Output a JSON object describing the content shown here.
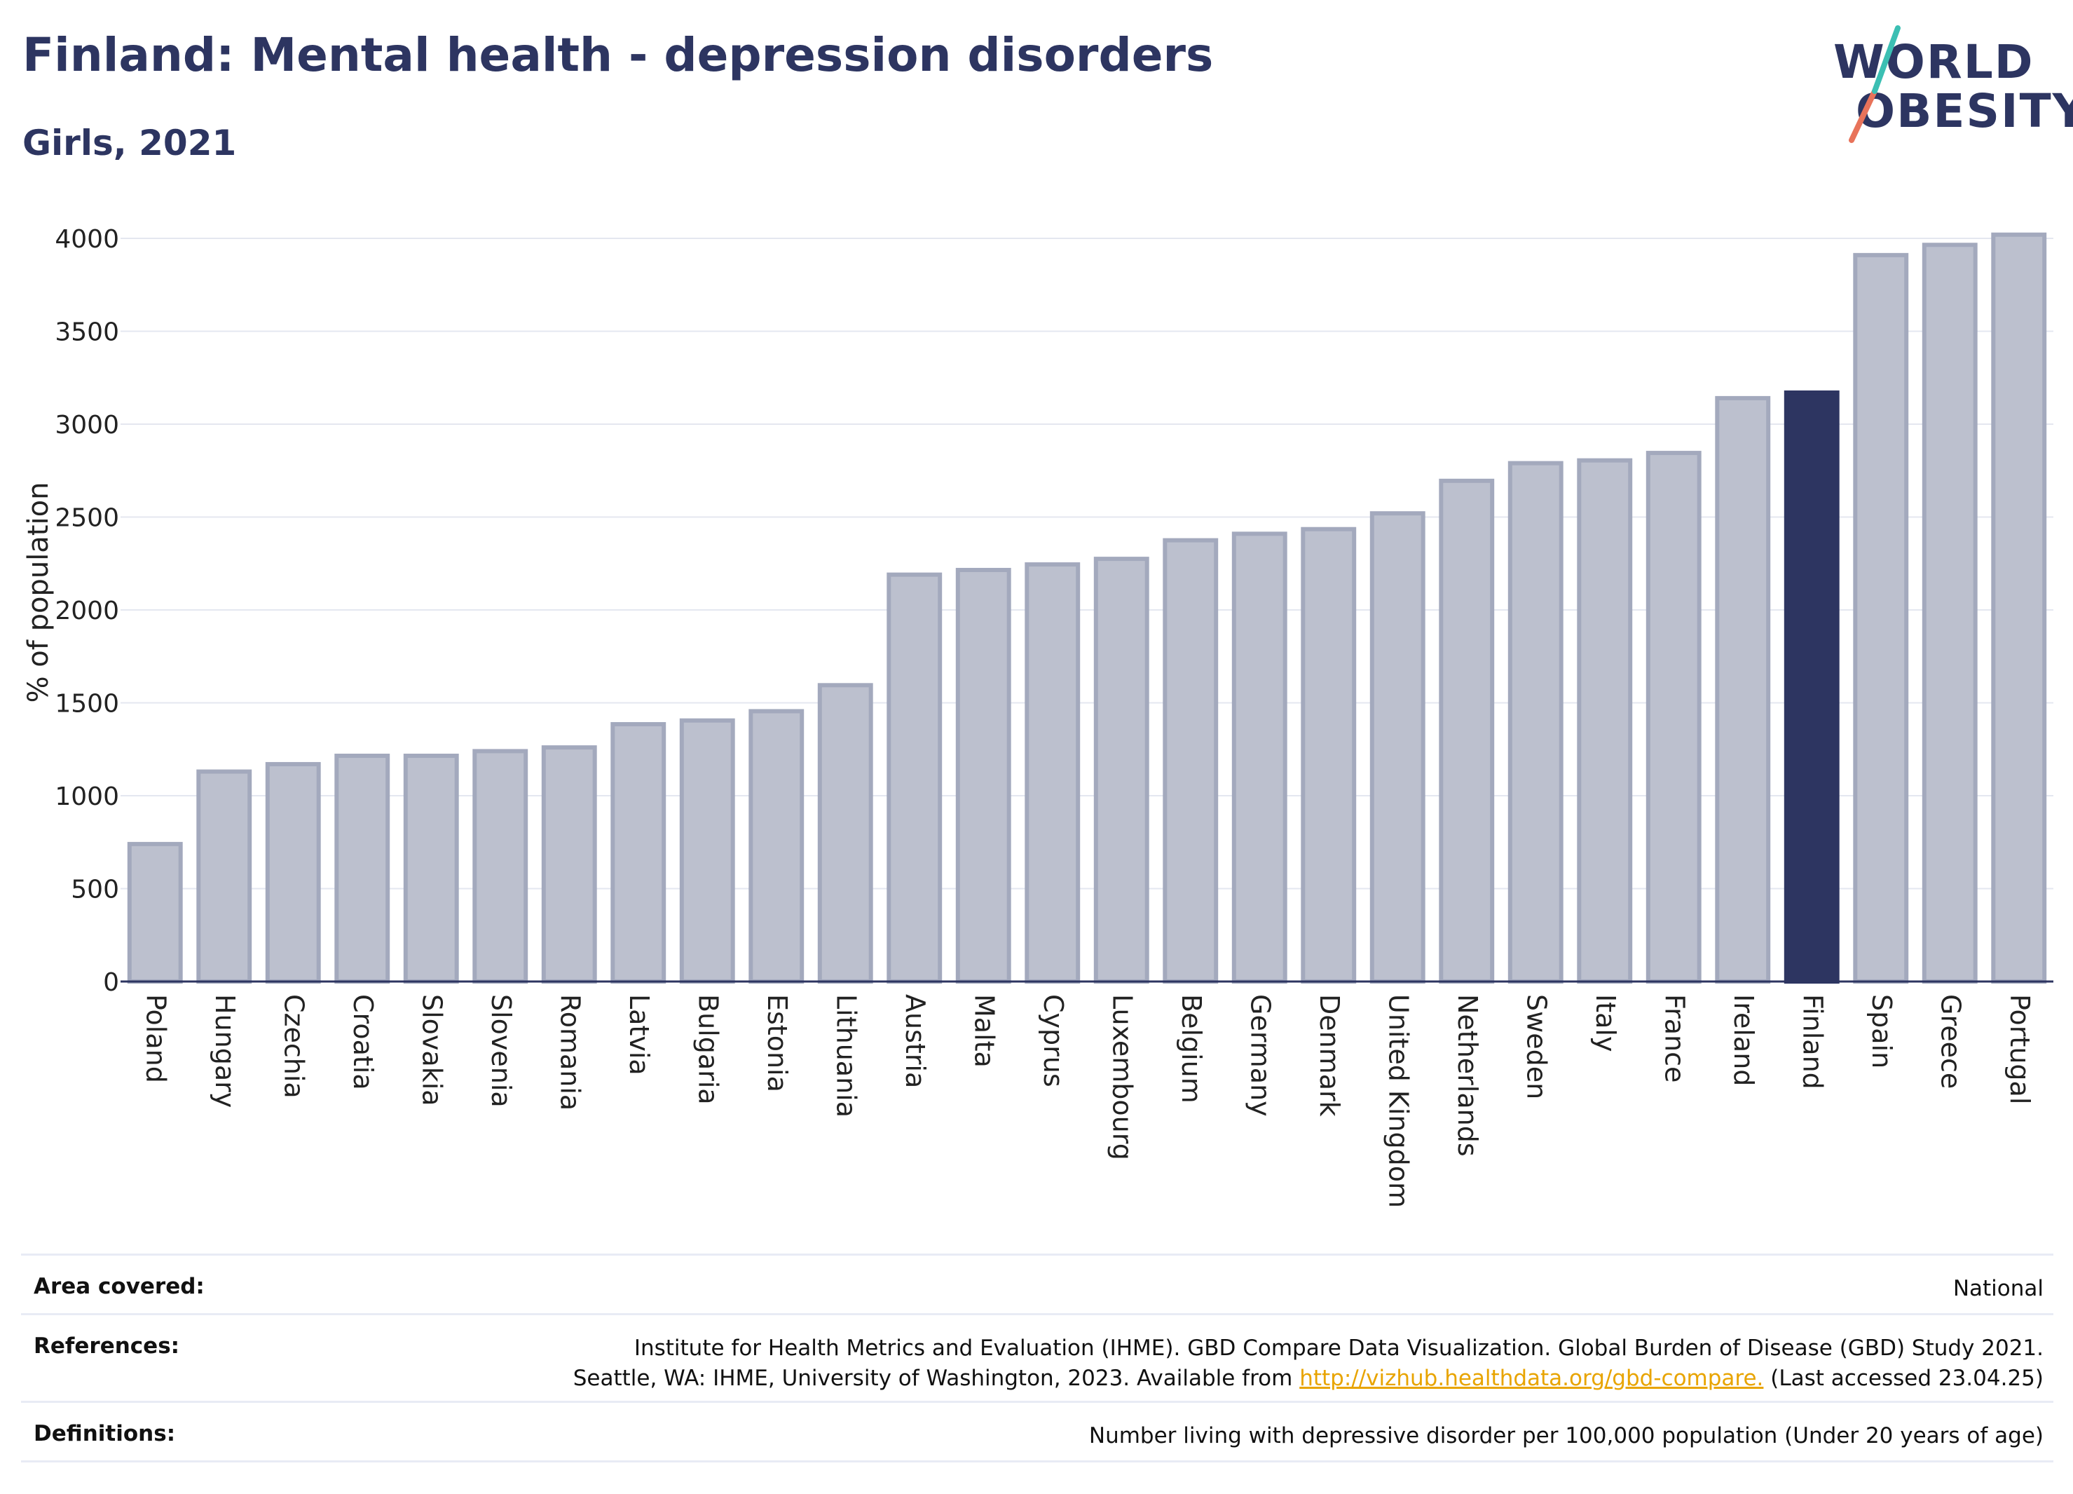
{
  "title": "Finland: Mental health - depression disorders",
  "subtitle": "Girls, 2021",
  "logo": {
    "line1": "WORLD",
    "line2": "OBESITY"
  },
  "colors": {
    "highlight": "#2d3561",
    "bar_fill": "#bcc0ce",
    "bar_stroke": "#a3a9bd",
    "title": "#2d3561",
    "link": "#e8a400"
  },
  "chart_data": {
    "type": "bar",
    "ylabel": "% of population",
    "ylim": [
      0,
      4100
    ],
    "yticks": [
      0,
      500,
      1000,
      1500,
      2000,
      2500,
      3000,
      3500,
      4000
    ],
    "grid": true,
    "highlight": "Finland",
    "categories": [
      "Poland",
      "Hungary",
      "Czechia",
      "Croatia",
      "Slovakia",
      "Slovenia",
      "Romania",
      "Latvia",
      "Bulgaria",
      "Estonia",
      "Lithuania",
      "Austria",
      "Malta",
      "Cyprus",
      "Luxembourg",
      "Belgium",
      "Germany",
      "Denmark",
      "United Kingdom",
      "Netherlands",
      "Sweden",
      "Italy",
      "France",
      "Ireland",
      "Finland",
      "Spain",
      "Greece",
      "Portugal"
    ],
    "values": [
      740,
      1130,
      1170,
      1215,
      1215,
      1240,
      1260,
      1385,
      1405,
      1455,
      1595,
      2190,
      2215,
      2245,
      2275,
      2375,
      2410,
      2435,
      2520,
      2695,
      2790,
      2805,
      2845,
      3140,
      3170,
      3910,
      3965,
      4020
    ]
  },
  "footer": {
    "area": {
      "label": "Area covered:",
      "value": "National"
    },
    "references": {
      "label": "References:",
      "line1": "Institute for Health Metrics and Evaluation (IHME). GBD Compare Data Visualization. Global Burden of Disease (GBD) Study 2021.",
      "line2_pre": "Seattle, WA: IHME, University of Washington, 2023. Available from ",
      "link": "http://vizhub.healthdata.org/gbd-compare.",
      "line2_post": " (Last accessed 23.04.25)"
    },
    "definitions": {
      "label": "Definitions:",
      "value": "Number living with depressive disorder per 100,000 population (Under 20 years of age)"
    }
  }
}
